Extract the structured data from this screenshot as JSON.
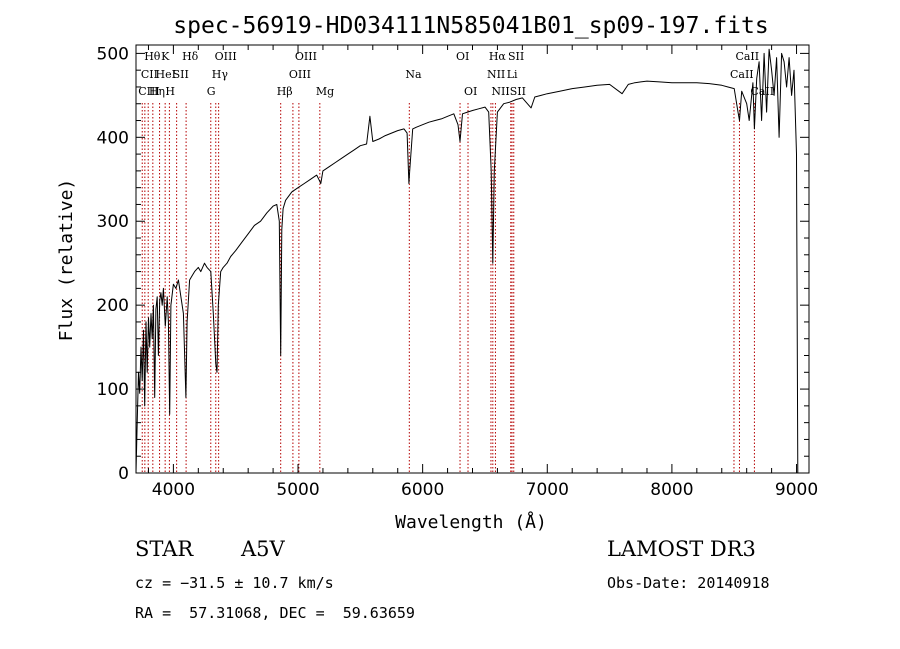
{
  "chart_data": {
    "type": "line",
    "title": "spec-56919-HD034111N585041B01_sp09-197.fits",
    "xlabel": "Wavelength (Å)",
    "ylabel": "Flux (relative)",
    "xlim": [
      3700,
      9100
    ],
    "ylim": [
      0,
      510
    ],
    "xticks": [
      "4000",
      "5000",
      "6000",
      "7000",
      "8000",
      "9000"
    ],
    "yticks": [
      "0",
      "100",
      "200",
      "300",
      "400",
      "500"
    ],
    "line_color": "#b40000",
    "series": [
      {
        "values": [
          [
            3700,
            0
          ],
          [
            3710,
            60
          ],
          [
            3720,
            120
          ],
          [
            3730,
            95
          ],
          [
            3740,
            150
          ],
          [
            3750,
            110
          ],
          [
            3760,
            170
          ],
          [
            3770,
            80
          ],
          [
            3780,
            180
          ],
          [
            3790,
            120
          ],
          [
            3800,
            185
          ],
          [
            3810,
            150
          ],
          [
            3820,
            190
          ],
          [
            3830,
            160
          ],
          [
            3840,
            200
          ],
          [
            3850,
            90
          ],
          [
            3860,
            195
          ],
          [
            3870,
            210
          ],
          [
            3880,
            140
          ],
          [
            3890,
            205
          ],
          [
            3900,
            215
          ],
          [
            3910,
            200
          ],
          [
            3920,
            220
          ],
          [
            3935,
            175
          ],
          [
            3950,
            210
          ],
          [
            3960,
            180
          ],
          [
            3970,
            70
          ],
          [
            3980,
            200
          ],
          [
            4000,
            225
          ],
          [
            4020,
            220
          ],
          [
            4040,
            230
          ],
          [
            4060,
            210
          ],
          [
            4080,
            190
          ],
          [
            4100,
            90
          ],
          [
            4110,
            180
          ],
          [
            4130,
            230
          ],
          [
            4150,
            235
          ],
          [
            4170,
            240
          ],
          [
            4200,
            245
          ],
          [
            4220,
            240
          ],
          [
            4250,
            250
          ],
          [
            4270,
            245
          ],
          [
            4300,
            240
          ],
          [
            4320,
            190
          ],
          [
            4340,
            130
          ],
          [
            4350,
            120
          ],
          [
            4360,
            200
          ],
          [
            4380,
            240
          ],
          [
            4400,
            245
          ],
          [
            4430,
            250
          ],
          [
            4460,
            258
          ],
          [
            4500,
            265
          ],
          [
            4550,
            275
          ],
          [
            4600,
            285
          ],
          [
            4650,
            295
          ],
          [
            4700,
            300
          ],
          [
            4750,
            310
          ],
          [
            4800,
            318
          ],
          [
            4830,
            320
          ],
          [
            4850,
            300
          ],
          [
            4861,
            140
          ],
          [
            4870,
            290
          ],
          [
            4880,
            315
          ],
          [
            4900,
            325
          ],
          [
            4950,
            335
          ],
          [
            5000,
            340
          ],
          [
            5050,
            345
          ],
          [
            5100,
            350
          ],
          [
            5150,
            355
          ],
          [
            5167,
            350
          ],
          [
            5183,
            345
          ],
          [
            5200,
            360
          ],
          [
            5250,
            365
          ],
          [
            5300,
            370
          ],
          [
            5350,
            375
          ],
          [
            5400,
            380
          ],
          [
            5450,
            385
          ],
          [
            5500,
            390
          ],
          [
            5550,
            392
          ],
          [
            5577,
            425
          ],
          [
            5600,
            395
          ],
          [
            5650,
            398
          ],
          [
            5700,
            402
          ],
          [
            5750,
            405
          ],
          [
            5800,
            408
          ],
          [
            5850,
            410
          ],
          [
            5875,
            405
          ],
          [
            5890,
            345
          ],
          [
            5896,
            360
          ],
          [
            5920,
            410
          ],
          [
            5950,
            412
          ],
          [
            6000,
            415
          ],
          [
            6050,
            418
          ],
          [
            6100,
            420
          ],
          [
            6150,
            422
          ],
          [
            6200,
            425
          ],
          [
            6250,
            428
          ],
          [
            6284,
            415
          ],
          [
            6300,
            395
          ],
          [
            6320,
            428
          ],
          [
            6360,
            430
          ],
          [
            6400,
            432
          ],
          [
            6450,
            434
          ],
          [
            6500,
            436
          ],
          [
            6530,
            430
          ],
          [
            6550,
            360
          ],
          [
            6563,
            250
          ],
          [
            6575,
            360
          ],
          [
            6600,
            430
          ],
          [
            6650,
            440
          ],
          [
            6700,
            442
          ],
          [
            6750,
            445
          ],
          [
            6800,
            447
          ],
          [
            6870,
            435
          ],
          [
            6900,
            448
          ],
          [
            6950,
            450
          ],
          [
            7000,
            452
          ],
          [
            7100,
            455
          ],
          [
            7200,
            458
          ],
          [
            7300,
            460
          ],
          [
            7400,
            462
          ],
          [
            7500,
            463
          ],
          [
            7600,
            452
          ],
          [
            7650,
            463
          ],
          [
            7700,
            465
          ],
          [
            7750,
            466
          ],
          [
            7800,
            467
          ],
          [
            7900,
            466
          ],
          [
            8000,
            465
          ],
          [
            8100,
            465
          ],
          [
            8200,
            465
          ],
          [
            8300,
            464
          ],
          [
            8400,
            462
          ],
          [
            8450,
            460
          ],
          [
            8500,
            458
          ],
          [
            8530,
            430
          ],
          [
            8542,
            420
          ],
          [
            8560,
            455
          ],
          [
            8600,
            440
          ],
          [
            8620,
            420
          ],
          [
            8650,
            465
          ],
          [
            8662,
            410
          ],
          [
            8680,
            470
          ],
          [
            8700,
            490
          ],
          [
            8720,
            420
          ],
          [
            8740,
            500
          ],
          [
            8760,
            430
          ],
          [
            8780,
            505
          ],
          [
            8800,
            480
          ],
          [
            8820,
            450
          ],
          [
            8840,
            495
          ],
          [
            8860,
            400
          ],
          [
            8880,
            500
          ],
          [
            8900,
            490
          ],
          [
            8920,
            460
          ],
          [
            8940,
            495
          ],
          [
            8960,
            450
          ],
          [
            8980,
            480
          ],
          [
            9000,
            380
          ],
          [
            9010,
            0
          ]
        ]
      }
    ],
    "line_markers": [
      {
        "wl": 3750,
        "label": "CIII",
        "row": 2
      },
      {
        "wl": 3771,
        "label": "CII",
        "row": 1
      },
      {
        "wl": 3798,
        "label": "Hθ",
        "row": 0
      },
      {
        "wl": 3835,
        "label": "Hη",
        "row": 2
      },
      {
        "wl": 3889,
        "label": "HeI",
        "row": 1
      },
      {
        "wl": 3934,
        "label": "K",
        "row": 0
      },
      {
        "wl": 3968,
        "label": "H",
        "row": 2
      },
      {
        "wl": 4026,
        "label": "SII",
        "row": 1
      },
      {
        "wl": 4102,
        "label": "Hδ",
        "row": 0
      },
      {
        "wl": 4300,
        "label": "G",
        "row": 2
      },
      {
        "wl": 4340,
        "label": "Hγ",
        "row": 1
      },
      {
        "wl": 4363,
        "label": "OIII",
        "row": 0
      },
      {
        "wl": 4861,
        "label": "Hβ",
        "row": 2
      },
      {
        "wl": 4959,
        "label": "OIII",
        "row": 1
      },
      {
        "wl": 5007,
        "label": "OIII",
        "row": 0
      },
      {
        "wl": 5175,
        "label": "Mg",
        "row": 2
      },
      {
        "wl": 5893,
        "label": "Na",
        "row": 1
      },
      {
        "wl": 6300,
        "label": "OI",
        "row": 0
      },
      {
        "wl": 6364,
        "label": "OI",
        "row": 2
      },
      {
        "wl": 6548,
        "label": "NII",
        "row": 1
      },
      {
        "wl": 6563,
        "label": "Hα",
        "row": 0
      },
      {
        "wl": 6584,
        "label": "NII",
        "row": 2
      },
      {
        "wl": 6707,
        "label": "Li",
        "row": 1
      },
      {
        "wl": 6717,
        "label": "SII",
        "row": 0
      },
      {
        "wl": 6731,
        "label": "SII",
        "row": 2
      },
      {
        "wl": 8498,
        "label": "CaII",
        "row": 1
      },
      {
        "wl": 8542,
        "label": "CaII",
        "row": 0
      },
      {
        "wl": 8662,
        "label": "CaII",
        "row": 2
      }
    ]
  },
  "info": {
    "object_class": "STAR",
    "subclass": "A5V",
    "survey": "LAMOST DR3",
    "cz": "cz = −31.5 ± 10.7 km/s",
    "obs_date": "Obs-Date: 20140918",
    "coords": "RA =  57.31068, DEC =  59.63659"
  }
}
